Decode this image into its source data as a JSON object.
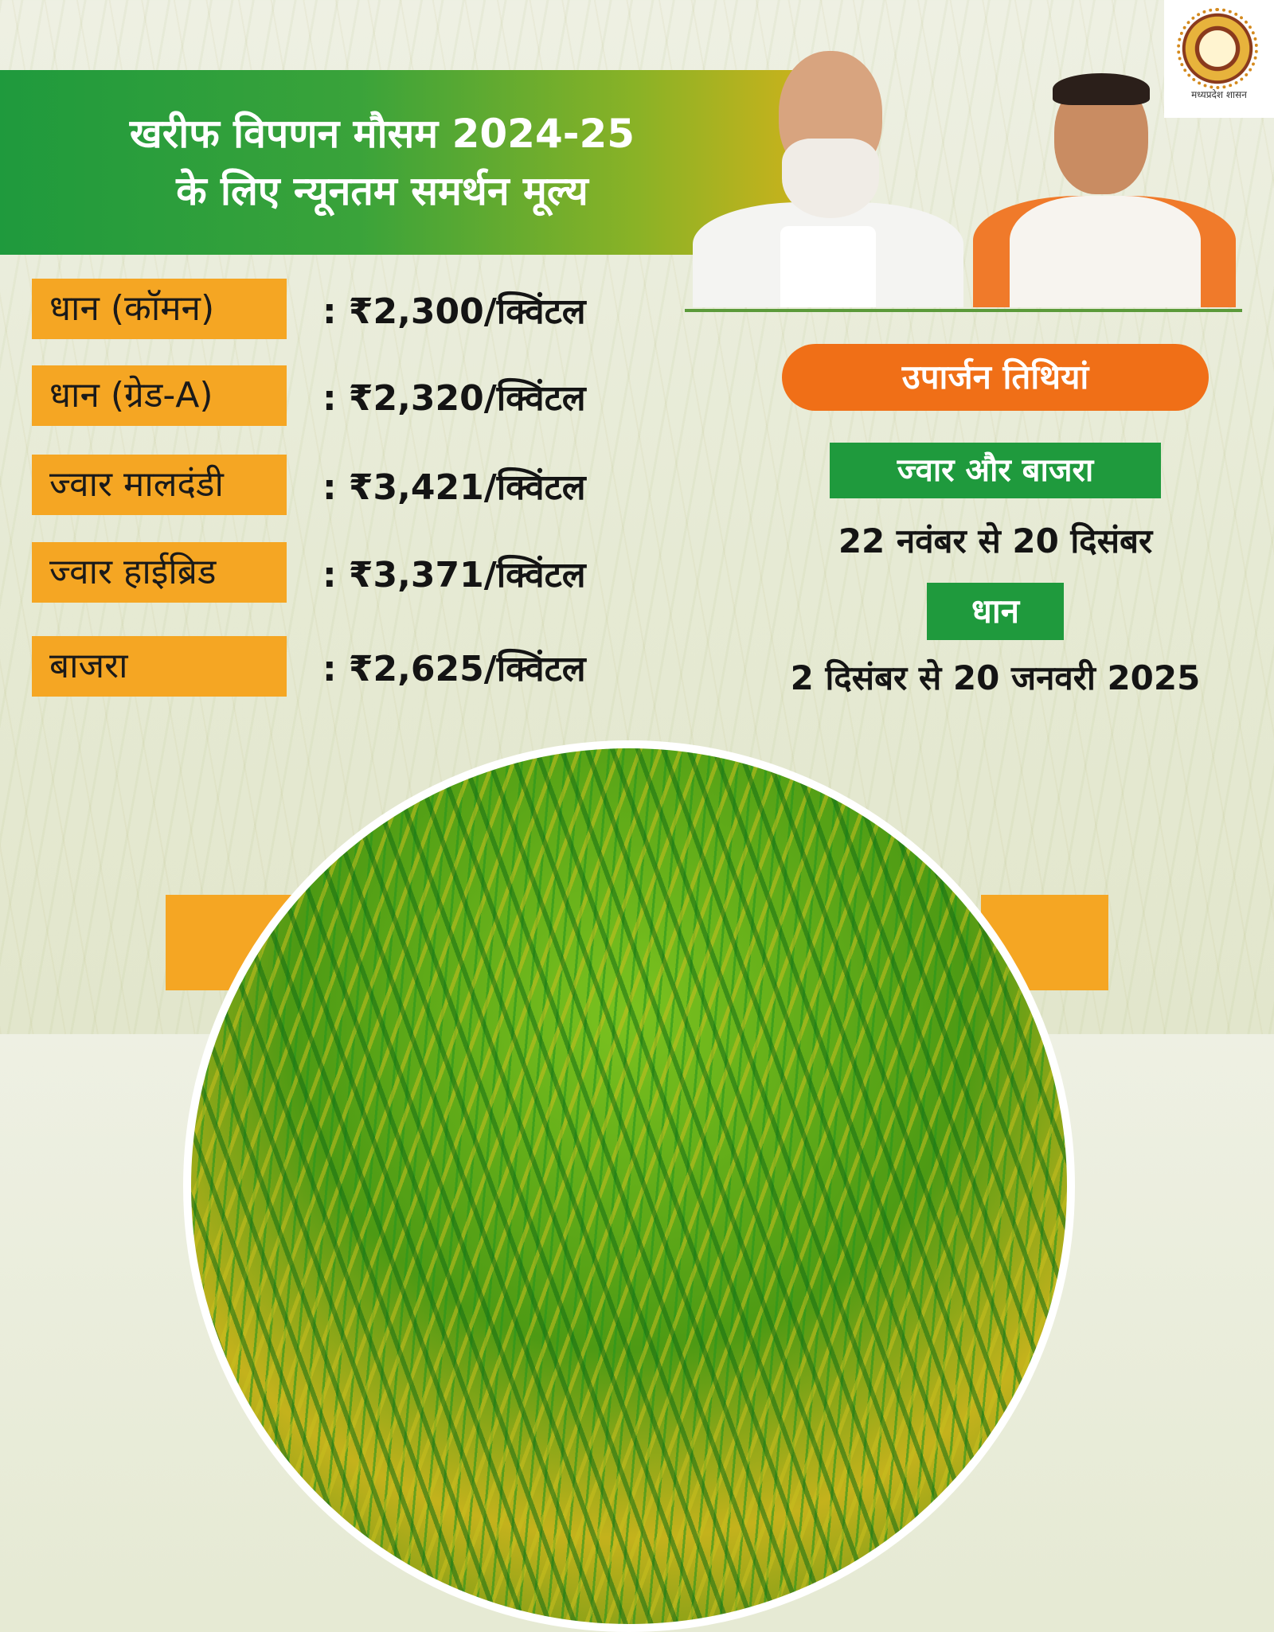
{
  "title": {
    "line1": "खरीफ विपणन मौसम 2024-25",
    "line2": "के लिए न्यूनतम समर्थन मूल्य"
  },
  "logo": {
    "caption": "मध्यप्रदेश शासन"
  },
  "msp_items": [
    {
      "crop": "धान (कॉमन)",
      "price": ": ₹2,300/क्विंटल"
    },
    {
      "crop": "धान (ग्रेड-A)",
      "price": ": ₹2,320/क्विंटल"
    },
    {
      "crop": "ज्वार मालदंडी",
      "price": ": ₹3,421/क्विंटल"
    },
    {
      "crop": "ज्वार हाईब्रिड",
      "price": ": ₹3,371/क्विंटल"
    },
    {
      "crop": "बाजरा",
      "price": ": ₹2,625/क्विंटल"
    }
  ],
  "procurement": {
    "heading": "उपार्जन तिथियां",
    "groups": [
      {
        "crop": "ज्वार और बाजरा",
        "dates": "22 नवंबर से 20 दिसंबर"
      },
      {
        "crop": "धान",
        "dates": "2 दिसंबर से 20 जनवरी 2025"
      }
    ]
  },
  "colors": {
    "green": "#1f9a3d",
    "orange": "#f06f17",
    "amber": "#f5a623"
  }
}
